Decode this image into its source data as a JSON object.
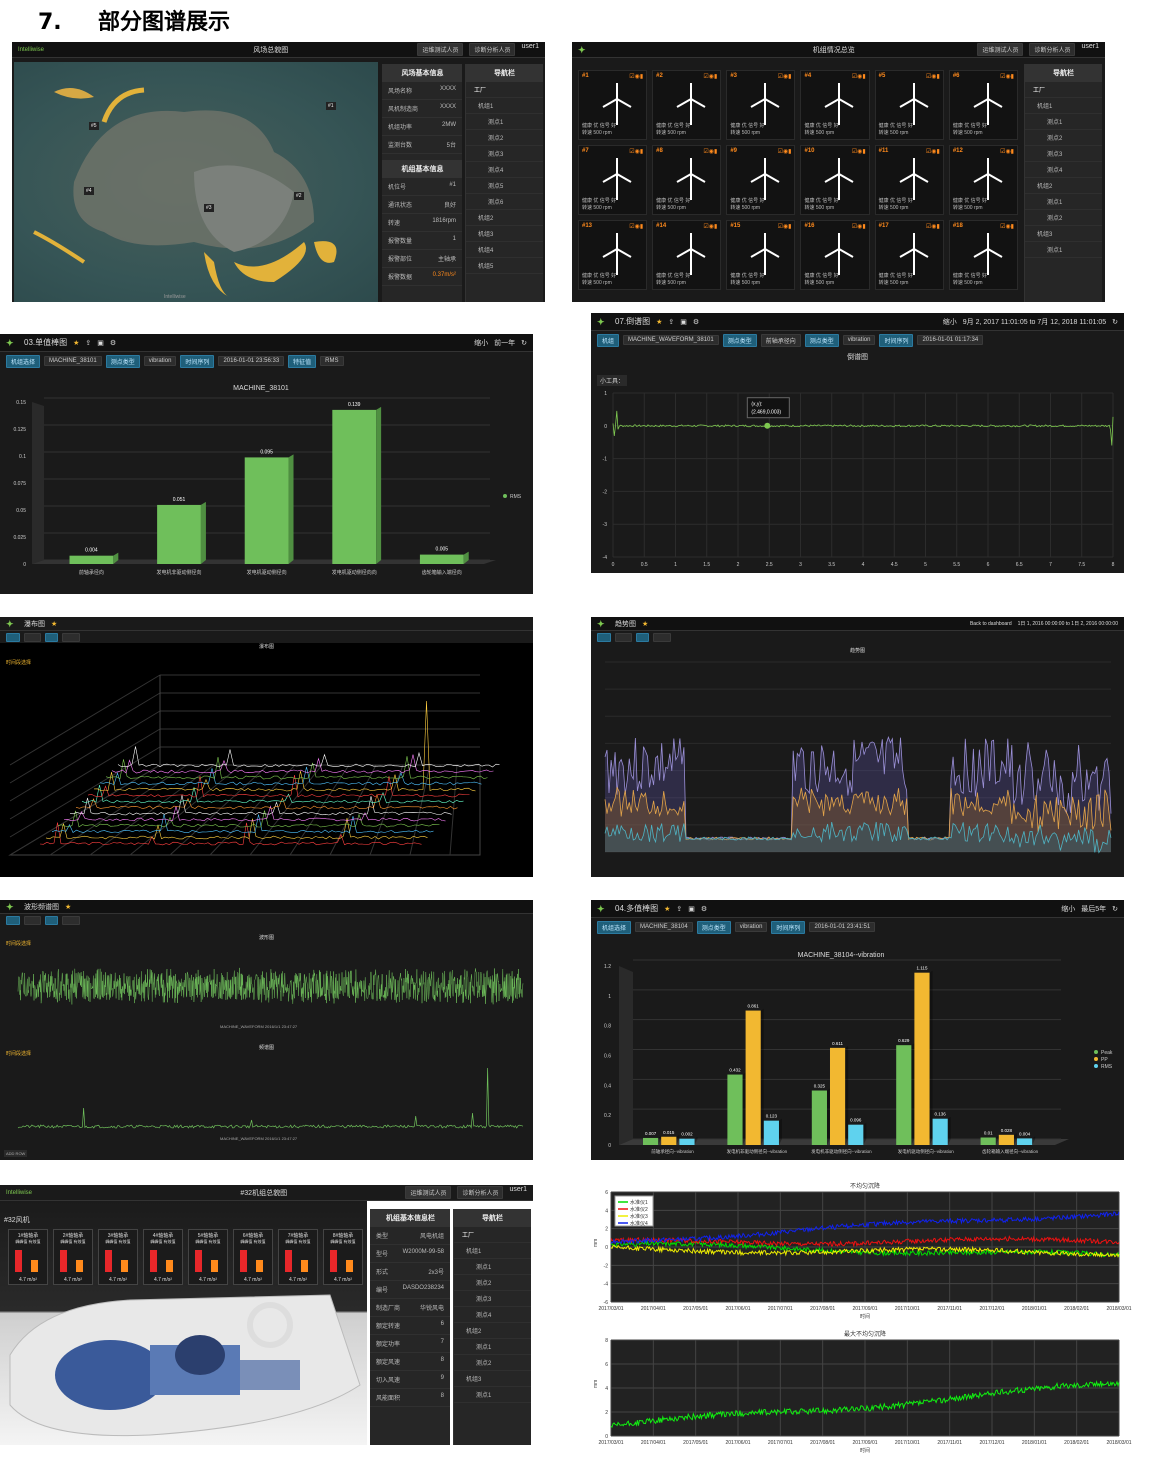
{
  "heading": {
    "number": "7.",
    "title": "部分图谱展示"
  },
  "p1": {
    "logo": "Intelliwise",
    "title": "风场总貌图",
    "tab1": "运维测试人员",
    "tab2": "诊断分析人员",
    "user": "user1",
    "info1_title": "风场基本信息",
    "info1": [
      [
        "风场名称",
        "XXXX"
      ],
      [
        "风机制造商",
        "XXXX"
      ],
      [
        "机组功率",
        "2MW"
      ],
      [
        "监测台数",
        "5台"
      ]
    ],
    "info2_title": "机组基本信息",
    "info2": [
      [
        "机位号",
        "#1"
      ],
      [
        "通讯状态",
        "良好"
      ],
      [
        "转速",
        "1816rpm"
      ],
      [
        "报警数量",
        "1"
      ],
      [
        "报警部位",
        "主轴承"
      ],
      [
        "报警数据",
        "0.37m/s²"
      ]
    ],
    "nav_title": "导航栏",
    "nav": [
      "工厂",
      "机组1",
      "测点1",
      "测点2",
      "测点3",
      "测点4",
      "测点5",
      "测点6",
      "机组2",
      "机组3",
      "机组4",
      "机组5"
    ],
    "markers": [
      "#1",
      "#2",
      "#3",
      "#4",
      "#5"
    ],
    "footer": "Intelliwise"
  },
  "p2": {
    "title": "机组情况总览",
    "tab1": "运维测试人员",
    "tab2": "诊断分析人员",
    "user": "user1",
    "tiles": [
      "#1",
      "#2",
      "#3",
      "#4",
      "#5",
      "#6",
      "#7",
      "#8",
      "#9",
      "#10",
      "#11",
      "#12",
      "#13",
      "#14",
      "#15",
      "#16",
      "#17",
      "#18"
    ],
    "tile_line1": "健康 优 信号 好",
    "tile_line2": "转速 500 rpm",
    "nav_title": "导航栏",
    "nav": [
      "工厂",
      "机组1",
      "测点1",
      "测点2",
      "测点3",
      "测点4",
      "机组2",
      "测点1",
      "测点2",
      "机组3",
      "测点1"
    ]
  },
  "p3": {
    "tab": "03.单值棒图",
    "zoom": "缩小",
    "range": "前一年",
    "f1": "机组选择",
    "f2": "MACHINE_38101",
    "f3": "测点类型",
    "f4": "vibration",
    "f5": "时间序列",
    "f6": "2016-01-01 23:56:33",
    "f7": "特征值",
    "f8": "RMS",
    "chart_title": "MACHINE_38101",
    "legend": "RMS"
  },
  "p4": {
    "tab": "07.倒谱图",
    "zoom": "缩小",
    "range": "9月 2, 2017 11:01:05 to 7月 12, 2018 11:01:05",
    "f1": "机组",
    "f2": "MACHINE_WAVEFORM_38101",
    "f3": "测点类型",
    "f4": "前轴承径向",
    "f5": "测点类型",
    "f6": "vibration",
    "f7": "时间序列",
    "f8": "2016-01-01 01:17:34",
    "chart_title": "倒谱图",
    "tool": "小工具：",
    "tooltip1": "(x,y):",
    "tooltip2": "(2.469,0.003)"
  },
  "p5": {
    "tab": "瀑布图",
    "chart_title": "瀑布图",
    "label": "时间段选择"
  },
  "p6": {
    "tab": "趋势图",
    "back": "Back to dashboard",
    "range": "1日 1, 2016 00:00:00 to 1日 2, 2016 00:00:00",
    "chart_title": "趋势图"
  },
  "p7": {
    "tab": "波形频谱图",
    "chart1": "波形图",
    "chart2": "频谱图",
    "legend1": "MACHINE_WAVEFORM 2016/1/1 23:47:27",
    "legend2": "MACHINE_WAVEFORM 2016/1/1 23:47:27",
    "sel": "时间段选择",
    "btn": "ADD ROW"
  },
  "p8": {
    "tab": "04.多值棒图",
    "zoom": "缩小",
    "range": "最后5年",
    "f1": "机组选择",
    "f2": "MACHINE_38104",
    "f3": "测点类型",
    "f4": "vibration",
    "f5": "时间序列",
    "f6": "2016-01-01 23:41:51",
    "chart_title": "MACHINE_38104--vibration"
  },
  "p9": {
    "title": "#32机组总貌图",
    "tab1": "运维测试人员",
    "tab2": "诊断分析人员",
    "user": "user1",
    "unit": "#32风机",
    "bearings": [
      "1#轴轴承",
      "2#轴轴承",
      "3#轴轴承",
      "4#轴轴承",
      "5#轴轴承",
      "6#轴轴承",
      "7#轴轴承",
      "8#轴轴承"
    ],
    "sub": "峰峰值 有效值",
    "val": "4.7 m/s²",
    "info_title": "机组基本信息栏",
    "info": [
      [
        "类型",
        "风电机组"
      ],
      [
        "型号",
        "W2000M-99-58"
      ],
      [
        "形式",
        "2x3号"
      ],
      [
        "编号",
        "DASDO238234"
      ],
      [
        "制造厂商",
        "华锐风电"
      ],
      [
        "额定转速",
        "6"
      ],
      [
        "额定功率",
        "7"
      ],
      [
        "额定风速",
        "8"
      ],
      [
        "切入风速",
        "9"
      ],
      [
        "风能面积",
        "8"
      ]
    ],
    "nav_title": "导航栏",
    "nav": [
      "工厂",
      "机组1",
      "测点1",
      "测点2",
      "测点3",
      "测点4",
      "机组2",
      "测点1",
      "测点2",
      "机组3",
      "测点1"
    ]
  },
  "p10": {
    "chart1_title": "不均匀沉降",
    "chart2_title": "最大不均匀沉降",
    "ylabel": "mm",
    "xlabel": "时间"
  },
  "chart_data": [
    {
      "type": "bar",
      "title": "MACHINE_38101",
      "categories": [
        "前轴承径向",
        "发电机非驱动侧径向",
        "发电机驱动侧径向",
        "发电机驱动侧径向向",
        "齿轮箱输入端径向"
      ],
      "series": [
        {
          "name": "RMS",
          "values": [
            0.004,
            0.051,
            0.095,
            0.139,
            0.005
          ]
        }
      ],
      "ylim": [
        0,
        0.15
      ],
      "yticks": [
        "0",
        "0.025",
        "0.05",
        "0.075",
        "0.1",
        "0.125",
        "0.15"
      ],
      "color": "#6fbf5b"
    },
    {
      "type": "bar",
      "title": "MACHINE_38104--vibration",
      "categories": [
        "前轴承径向--vibration",
        "发电机非驱动侧径向--vibration",
        "发电机非驱动侧径向--vibration",
        "发电机驱动侧径向--vibration",
        "齿轮箱输入端径向--vibration"
      ],
      "series": [
        {
          "name": "Peak",
          "color": "#6fbf5b",
          "values": [
            0.007,
            0.432,
            0.325,
            0.629,
            0.01
          ]
        },
        {
          "name": "PP",
          "color": "#f2b831",
          "values": [
            0.015,
            0.861,
            0.611,
            1.115,
            0.028
          ]
        },
        {
          "name": "RMS",
          "color": "#5fd2ee",
          "values": [
            0.002,
            0.123,
            0.096,
            0.136,
            0.004
          ]
        }
      ],
      "ylim": [
        0,
        1.2
      ],
      "yticks": [
        "0",
        "0.2",
        "0.4",
        "0.6",
        "0.8",
        "1",
        "1.2"
      ]
    },
    {
      "type": "line",
      "title": "倒谱图",
      "x_ticks": [
        "0",
        "0.5",
        "1",
        "1.5",
        "2",
        "2.5",
        "3",
        "3.5",
        "4",
        "4.5",
        "5",
        "5.5",
        "6",
        "6.5",
        "7",
        "7.5",
        "8"
      ],
      "y_ticks": [
        "1",
        "0",
        "-1",
        "-2",
        "-3",
        "-4"
      ],
      "xlim": [
        0,
        8
      ],
      "ylim": [
        -4,
        1
      ],
      "point": [
        2.469,
        0.003
      ],
      "color": "#7ec850"
    },
    {
      "type": "line",
      "title": "不均匀沉降",
      "ylabel": "mm",
      "xlabel": "时间",
      "x_ticks": [
        "2017/03/01",
        "2017/04/01",
        "2017/05/01",
        "2017/06/01",
        "2017/07/01",
        "2017/08/01",
        "2017/09/01",
        "2017/10/01",
        "2017/11/01",
        "2017/12/01",
        "2018/01/01",
        "2018/02/01",
        "2018/03/01"
      ],
      "y_ticks": [
        "6",
        "4",
        "2",
        "0",
        "-2",
        "-4",
        "-6"
      ],
      "ylim": [
        -6,
        6
      ],
      "series": [
        {
          "name": "水准仪1",
          "color": "#00dd00",
          "start": 0.3,
          "end": -1.0
        },
        {
          "name": "水准仪2",
          "color": "#ee1111",
          "start": 0.5,
          "end": 0.7
        },
        {
          "name": "水准仪3",
          "color": "#eeee00",
          "start": -0.3,
          "end": -0.6
        },
        {
          "name": "水准仪4",
          "color": "#1122ee",
          "start": 0.6,
          "end": 3.8
        }
      ]
    },
    {
      "type": "line",
      "title": "最大不均匀沉降",
      "ylabel": "mm",
      "xlabel": "时间",
      "x_ticks": [
        "2017/03/01",
        "2017/04/01",
        "2017/05/01",
        "2017/06/01",
        "2017/07/01",
        "2017/08/01",
        "2017/09/01",
        "2017/10/01",
        "2017/11/01",
        "2017/12/01",
        "2018/01/01",
        "2018/02/01",
        "2018/03/01"
      ],
      "y_ticks": [
        "8",
        "6",
        "4",
        "2",
        "0"
      ],
      "ylim": [
        0,
        8
      ],
      "series": [
        {
          "name": "",
          "color": "#11ee11",
          "start": 0.8,
          "end": 4.3
        }
      ]
    }
  ]
}
